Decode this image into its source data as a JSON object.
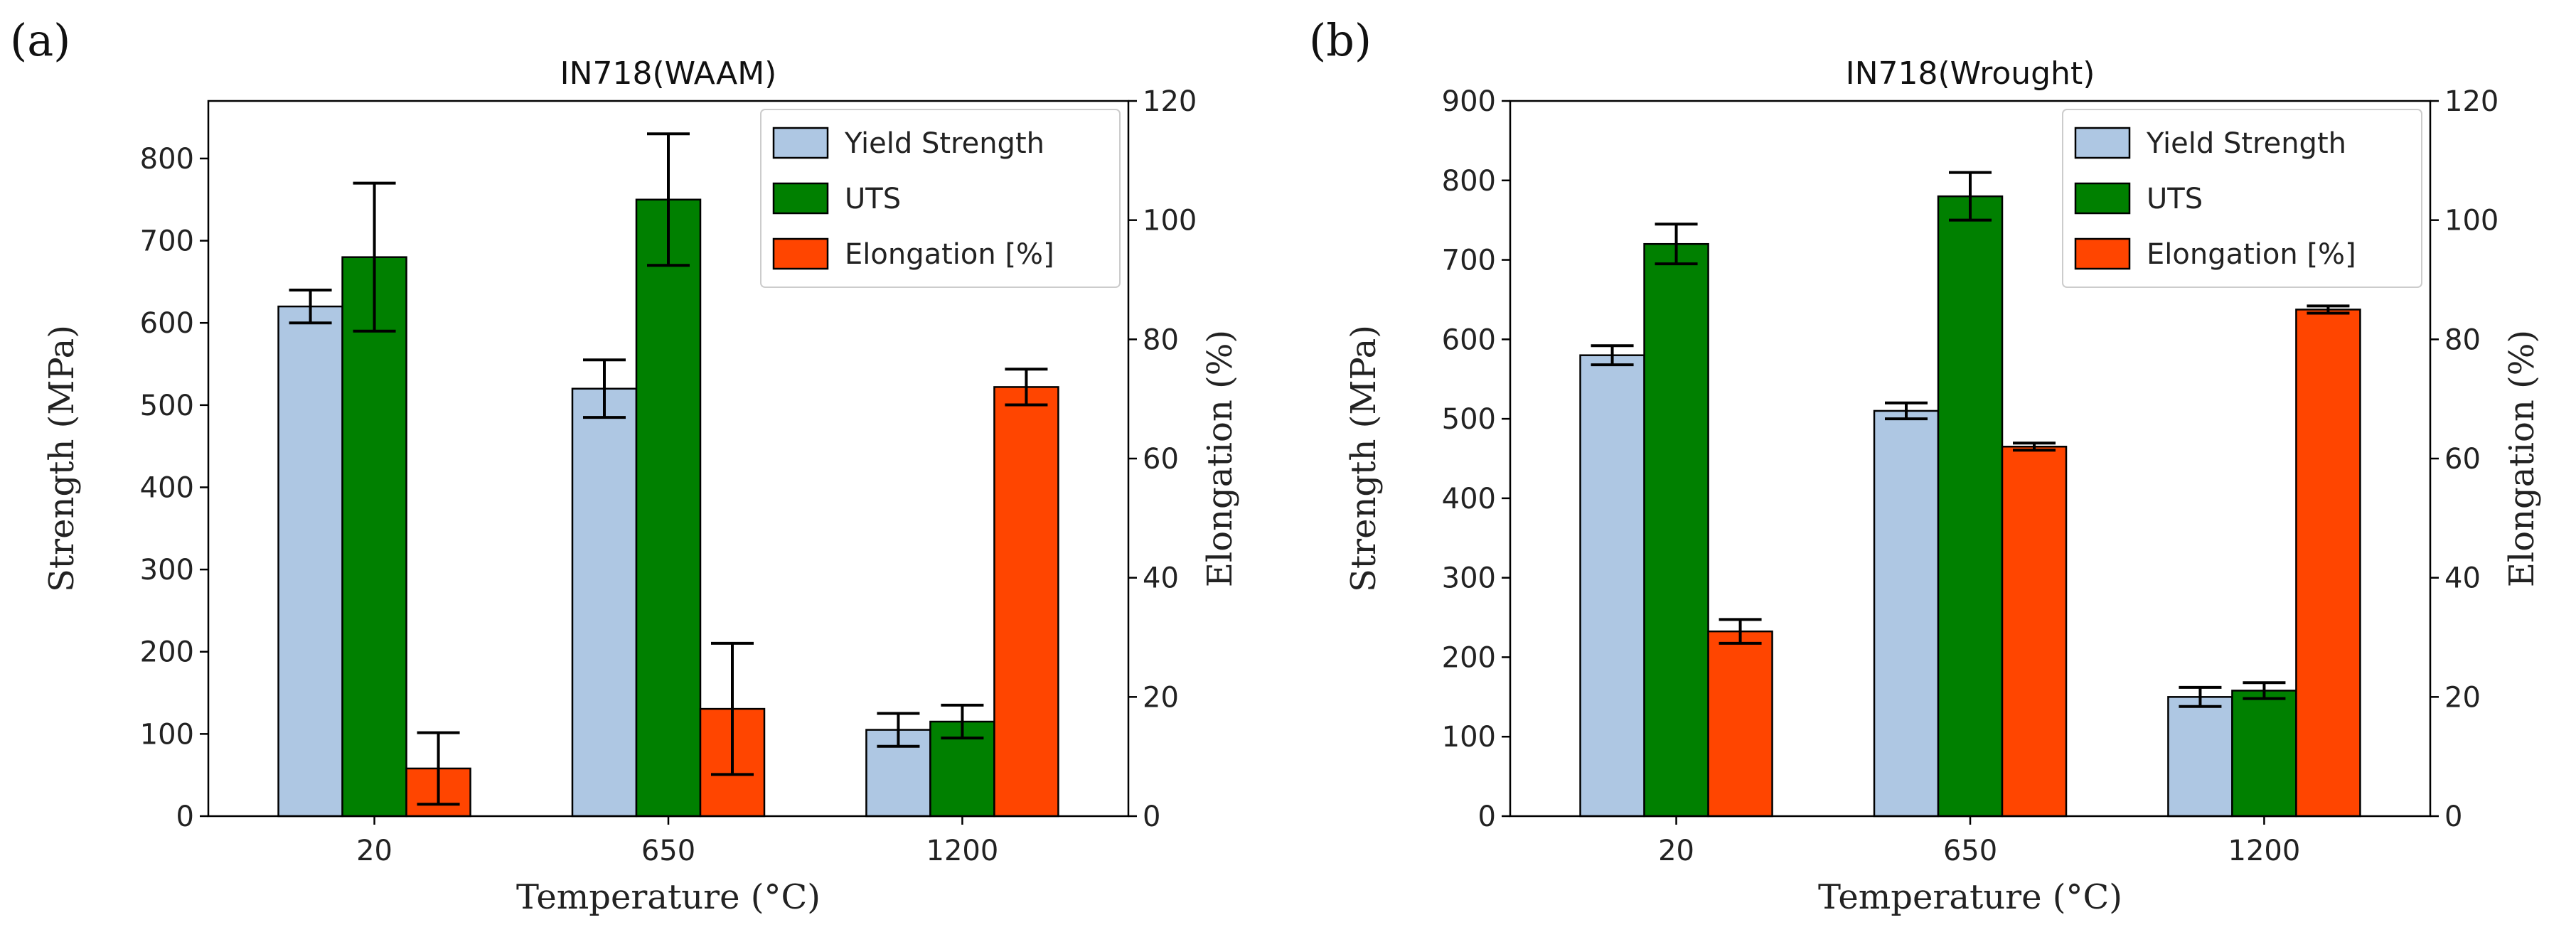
{
  "chart_data": [
    {
      "type": "bar",
      "panel_label": "(a)",
      "title": "IN718(WAAM)",
      "xlabel": "Temperature (°C)",
      "ylabel": "Strength (MPa)",
      "y2label": "Elongation (%)",
      "categories": [
        "20",
        "650",
        "1200"
      ],
      "ylim": [
        0,
        870
      ],
      "yticks": [
        0,
        100,
        200,
        300,
        400,
        500,
        600,
        700,
        800
      ],
      "y2lim": [
        0,
        120
      ],
      "y2ticks": [
        0,
        20,
        40,
        60,
        80,
        100,
        120
      ],
      "legend_position": "top-right",
      "series": [
        {
          "name": "Yield Strength",
          "axis": "left",
          "color": "#aec7e3",
          "values": [
            620,
            520,
            105
          ],
          "errors": [
            20,
            35,
            20
          ]
        },
        {
          "name": "UTS",
          "axis": "left",
          "color": "#008000",
          "values": [
            680,
            750,
            115
          ],
          "errors": [
            90,
            80,
            20
          ]
        },
        {
          "name": "Elongation [%]",
          "axis": "right",
          "color": "#ff4500",
          "values": [
            8,
            18,
            72
          ],
          "errors": [
            6,
            11,
            3
          ]
        }
      ]
    },
    {
      "type": "bar",
      "panel_label": "(b)",
      "title": "IN718(Wrought)",
      "xlabel": "Temperature (°C)",
      "ylabel": "Strength (MPa)",
      "y2label": "Elongation (%)",
      "categories": [
        "20",
        "650",
        "1200"
      ],
      "ylim": [
        0,
        900
      ],
      "yticks": [
        0,
        100,
        200,
        300,
        400,
        500,
        600,
        700,
        800,
        900
      ],
      "y2lim": [
        0,
        120
      ],
      "y2ticks": [
        0,
        20,
        40,
        60,
        80,
        100,
        120
      ],
      "legend_position": "top-right",
      "series": [
        {
          "name": "Yield Strength",
          "axis": "left",
          "color": "#aec7e3",
          "values": [
            580,
            510,
            150
          ],
          "errors": [
            12,
            10,
            12
          ]
        },
        {
          "name": "UTS",
          "axis": "left",
          "color": "#008000",
          "values": [
            720,
            780,
            158
          ],
          "errors": [
            25,
            30,
            10
          ]
        },
        {
          "name": "Elongation [%]",
          "axis": "right",
          "color": "#ff4500",
          "values": [
            31,
            62,
            85
          ],
          "errors": [
            2,
            0.6,
            0.6
          ]
        }
      ]
    }
  ]
}
